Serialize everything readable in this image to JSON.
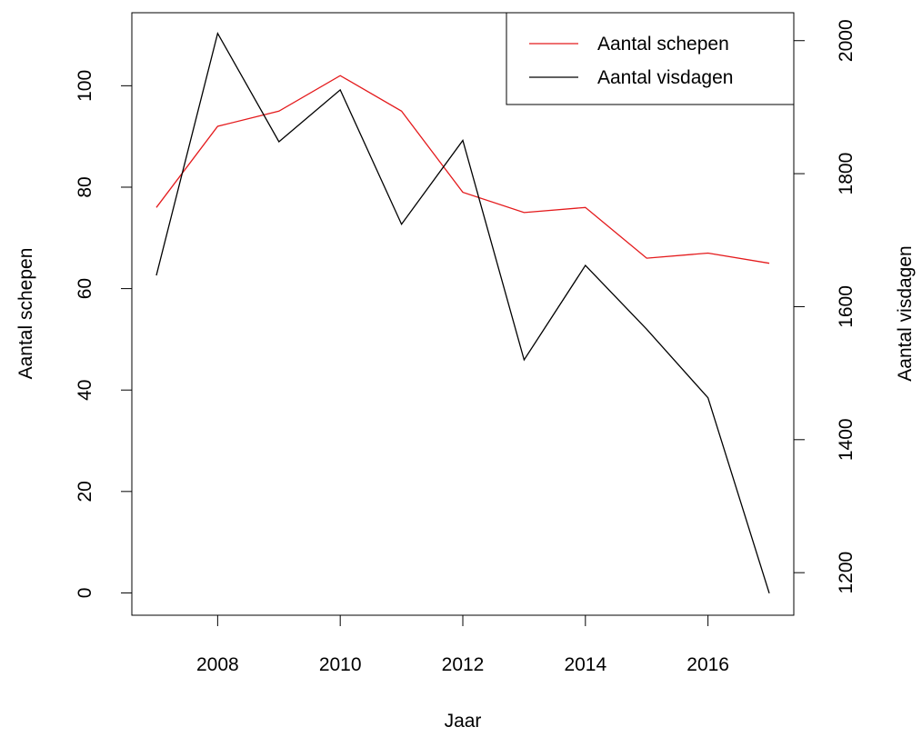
{
  "chart_data": {
    "type": "line",
    "x_label": "Jaar",
    "y_label": "Aantal schepen",
    "y2_label": "Aantal visdagen",
    "x": [
      2007,
      2008,
      2009,
      2010,
      2011,
      2012,
      2013,
      2014,
      2015,
      2016,
      2017
    ],
    "series": [
      {
        "name": "Aantal schepen",
        "color": "#e41a1c",
        "values": [
          76,
          92,
          95,
          102,
          95,
          79,
          75,
          76,
          66,
          67,
          65
        ]
      },
      {
        "name": "Aantal visdagen",
        "color": "#000000",
        "axis": "y2",
        "values": [
          1647,
          2011,
          1848,
          1926,
          1724,
          1850,
          1520,
          1662,
          1566,
          1463,
          1169
        ]
      }
    ],
    "xlim": [
      2006.6,
      2017.4
    ],
    "xticks": [
      2008,
      2010,
      2012,
      2014,
      2016
    ],
    "ylim": [
      -4.4,
      114.4
    ],
    "yticks": [
      0,
      20,
      40,
      60,
      80,
      100
    ],
    "y2lim": [
      1136,
      2042
    ],
    "y2ticks": [
      1200,
      1400,
      1600,
      1800,
      2000
    ],
    "legend": "top-right"
  }
}
